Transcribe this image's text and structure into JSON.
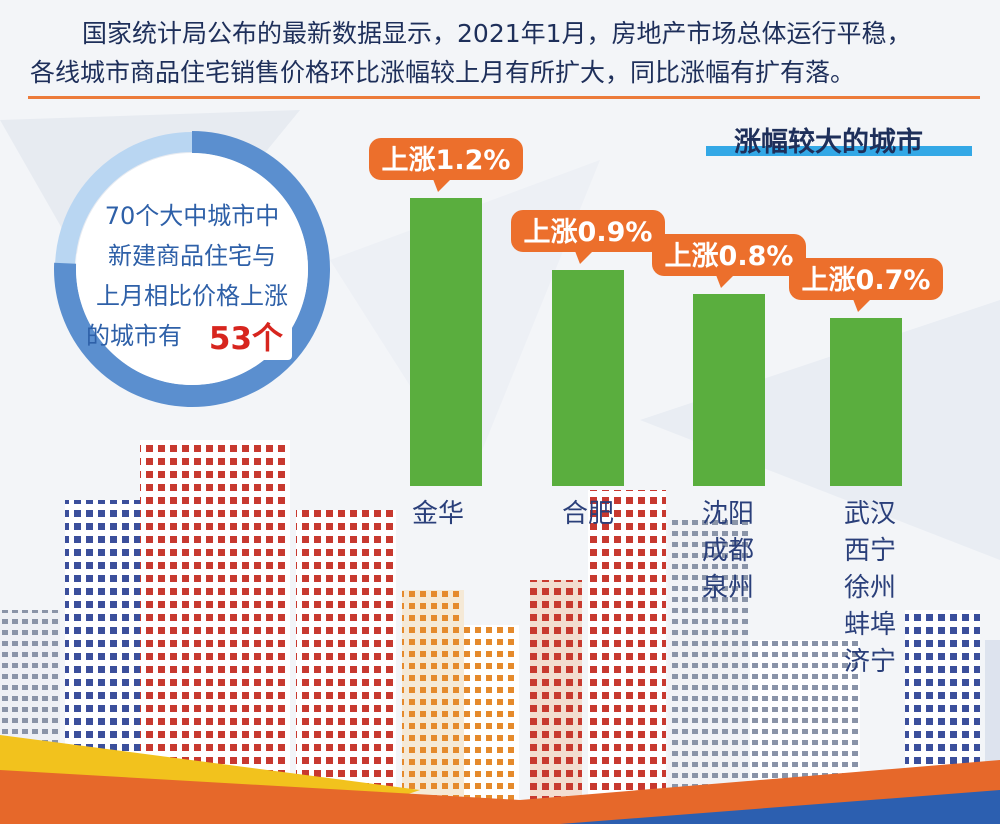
{
  "intro": {
    "line1": "国家统计局公布的最新数据显示，2021年1月，房地产市场总体运行平稳，",
    "line2": "各线城市商品住宅销售价格环比涨幅较上月有所扩大，同比涨幅有扩有落。"
  },
  "section_title": "涨幅较大的城市",
  "donut": {
    "lines": [
      "70个大中城市中",
      "新建商品住宅与",
      "上月相比价格上涨",
      "的城市有"
    ],
    "count": "53个",
    "total": 70,
    "rising": 53
  },
  "colors": {
    "bar": "#5aae3e",
    "label": "#ec6f2c",
    "donut_main": "#5b8fcf",
    "donut_rest": "#b9d6f2",
    "accent": "#33a8e6",
    "rule": "#ec7b3a"
  },
  "chart_data": {
    "type": "bar",
    "title": "涨幅较大的城市",
    "unit": "%",
    "ylim": [
      0,
      1.5
    ],
    "categories": [
      "金华",
      "合肥",
      "沈阳 成都 泉州",
      "武汉 西宁 徐州 蚌埠 济宁"
    ],
    "values": [
      1.2,
      0.9,
      0.8,
      0.7
    ],
    "data_labels": [
      "上涨1.2%",
      "上涨0.9%",
      "上涨0.8%",
      "上涨0.7%"
    ],
    "city_groups": [
      [
        "金华"
      ],
      [
        "合肥"
      ],
      [
        "沈阳",
        "成都",
        "泉州"
      ],
      [
        "武汉",
        "西宁",
        "徐州",
        "蚌埠",
        "济宁"
      ]
    ]
  }
}
